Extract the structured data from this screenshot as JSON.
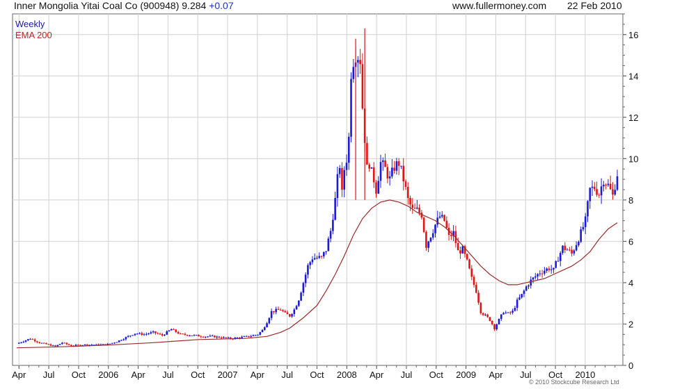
{
  "header": {
    "company": "Inner Mongolia Yitai Coal Co",
    "code": "(900948)",
    "price": "9.284",
    "change": "+0.07",
    "site": "www.fullermoney.com",
    "date": "22 Feb 2010"
  },
  "legend": {
    "weekly": "Weekly",
    "ema": "EMA 200"
  },
  "copyright": "© 2010 Stockcube Research Ltd",
  "colors": {
    "up": "#1a1ad6",
    "down": "#e01414",
    "ema": "#9a2a2a",
    "grid": "#d0d0d0"
  },
  "chart_data": {
    "type": "candlestick",
    "x_tick_labels": [
      "Apr",
      "Jul",
      "Oct",
      "2006",
      "Apr",
      "Jul",
      "Oct",
      "2007",
      "Apr",
      "Jul",
      "Oct",
      "2008",
      "Apr",
      "Jul",
      "Oct",
      "2009",
      "Apr",
      "Jul",
      "Oct",
      "2010"
    ],
    "y_ticks": [
      0,
      2,
      4,
      6,
      8,
      10,
      12,
      14,
      16
    ],
    "ylim": [
      0,
      17
    ],
    "grid": true,
    "y_axis_side": "right",
    "x_range_weeks": [
      0,
      254
    ],
    "series": [
      {
        "name": "Weekly",
        "close_points": [
          [
            0,
            1.05
          ],
          [
            6,
            1.3
          ],
          [
            10,
            1.1
          ],
          [
            14,
            1.0
          ],
          [
            17,
            0.92
          ],
          [
            20,
            1.1
          ],
          [
            24,
            0.95
          ],
          [
            30,
            1.0
          ],
          [
            36,
            1.0
          ],
          [
            40,
            1.02
          ],
          [
            44,
            1.15
          ],
          [
            48,
            1.35
          ],
          [
            52,
            1.55
          ],
          [
            56,
            1.5
          ],
          [
            60,
            1.6
          ],
          [
            64,
            1.45
          ],
          [
            68,
            1.75
          ],
          [
            72,
            1.5
          ],
          [
            78,
            1.45
          ],
          [
            82,
            1.4
          ],
          [
            86,
            1.4
          ],
          [
            90,
            1.35
          ],
          [
            94,
            1.3
          ],
          [
            98,
            1.35
          ],
          [
            102,
            1.4
          ],
          [
            106,
            1.5
          ],
          [
            108,
            1.7
          ],
          [
            110,
            2.1
          ],
          [
            112,
            2.6
          ],
          [
            114,
            2.65
          ],
          [
            116,
            2.7
          ],
          [
            118,
            2.5
          ],
          [
            120,
            2.4
          ],
          [
            122,
            2.7
          ],
          [
            124,
            3.2
          ],
          [
            126,
            4.0
          ],
          [
            128,
            4.8
          ],
          [
            130,
            5.2
          ],
          [
            132,
            5.2
          ],
          [
            134,
            5.2
          ],
          [
            136,
            5.6
          ],
          [
            138,
            6.5
          ],
          [
            140,
            8.0
          ],
          [
            141,
            9.0
          ],
          [
            142,
            9.7
          ],
          [
            143,
            8.3
          ],
          [
            144,
            9.5
          ],
          [
            145,
            10.0
          ],
          [
            146,
            11.0
          ],
          [
            147,
            14.2
          ],
          [
            148,
            14.8
          ],
          [
            149,
            15.1
          ],
          [
            150,
            15.0
          ],
          [
            151,
            14.8
          ],
          [
            152,
            12.5
          ],
          [
            153,
            11.0
          ],
          [
            154,
            9.5
          ],
          [
            155,
            9.8
          ],
          [
            156,
            9.3
          ],
          [
            157,
            9.0
          ],
          [
            158,
            8.5
          ],
          [
            160,
            9.8
          ],
          [
            162,
            9.5
          ],
          [
            164,
            9.0
          ],
          [
            166,
            9.6
          ],
          [
            168,
            9.8
          ],
          [
            170,
            9.0
          ],
          [
            172,
            8.0
          ],
          [
            174,
            7.5
          ],
          [
            176,
            7.5
          ],
          [
            178,
            7.3
          ],
          [
            180,
            5.8
          ],
          [
            182,
            6.3
          ],
          [
            184,
            6.8
          ],
          [
            186,
            7.2
          ],
          [
            188,
            7.0
          ],
          [
            190,
            6.2
          ],
          [
            192,
            6.4
          ],
          [
            194,
            5.5
          ],
          [
            196,
            5.6
          ],
          [
            198,
            5.0
          ],
          [
            200,
            4.2
          ],
          [
            202,
            3.6
          ],
          [
            204,
            2.6
          ],
          [
            206,
            2.4
          ],
          [
            208,
            2.2
          ],
          [
            210,
            1.8
          ],
          [
            212,
            2.2
          ],
          [
            214,
            2.6
          ],
          [
            216,
            2.5
          ],
          [
            218,
            2.6
          ],
          [
            220,
            3.1
          ],
          [
            222,
            3.4
          ],
          [
            224,
            3.8
          ],
          [
            226,
            4.1
          ],
          [
            228,
            4.3
          ],
          [
            230,
            4.5
          ],
          [
            232,
            4.6
          ],
          [
            234,
            4.7
          ],
          [
            236,
            4.6
          ],
          [
            238,
            5.2
          ],
          [
            240,
            5.7
          ],
          [
            242,
            5.6
          ],
          [
            244,
            5.4
          ],
          [
            246,
            5.9
          ],
          [
            248,
            6.4
          ],
          [
            250,
            7.0
          ],
          [
            252,
            8.5
          ],
          [
            254,
            8.6
          ],
          [
            256,
            8.3
          ],
          [
            258,
            9.0
          ],
          [
            260,
            8.7
          ],
          [
            262,
            8.2
          ],
          [
            264,
            9.28
          ]
        ]
      },
      {
        "name": "EMA 200",
        "points": [
          [
            0,
            0.85
          ],
          [
            20,
            0.9
          ],
          [
            40,
            0.98
          ],
          [
            60,
            1.1
          ],
          [
            80,
            1.25
          ],
          [
            100,
            1.3
          ],
          [
            110,
            1.4
          ],
          [
            116,
            1.6
          ],
          [
            120,
            1.8
          ],
          [
            126,
            2.3
          ],
          [
            132,
            2.9
          ],
          [
            136,
            3.6
          ],
          [
            140,
            4.4
          ],
          [
            144,
            5.3
          ],
          [
            148,
            6.3
          ],
          [
            152,
            7.1
          ],
          [
            156,
            7.6
          ],
          [
            160,
            7.9
          ],
          [
            164,
            8.0
          ],
          [
            168,
            7.9
          ],
          [
            172,
            7.7
          ],
          [
            176,
            7.4
          ],
          [
            180,
            7.2
          ],
          [
            184,
            7.0
          ],
          [
            188,
            6.7
          ],
          [
            192,
            6.3
          ],
          [
            196,
            5.8
          ],
          [
            200,
            5.3
          ],
          [
            204,
            4.8
          ],
          [
            208,
            4.4
          ],
          [
            212,
            4.1
          ],
          [
            216,
            3.9
          ],
          [
            220,
            3.9
          ],
          [
            224,
            4.0
          ],
          [
            228,
            4.1
          ],
          [
            232,
            4.2
          ],
          [
            236,
            4.4
          ],
          [
            240,
            4.6
          ],
          [
            244,
            4.8
          ],
          [
            248,
            5.1
          ],
          [
            252,
            5.5
          ],
          [
            256,
            6.1
          ],
          [
            260,
            6.6
          ],
          [
            264,
            6.9
          ]
        ]
      }
    ]
  }
}
